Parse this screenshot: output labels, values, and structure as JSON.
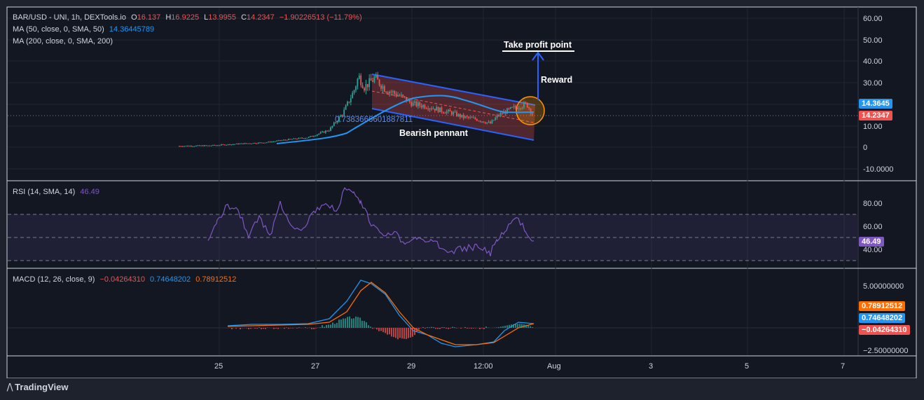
{
  "header": {
    "symbol": "BAR/USD - UNI, 1h, DEXTools.io",
    "ohlc": {
      "o_label": "O",
      "o": "16.137",
      "h_label": "H",
      "h": "16.9225",
      "l_label": "L",
      "l": "13.9955",
      "c_label": "C",
      "c": "14.2347",
      "change": "−1.90226513 (−11.79%)"
    },
    "ma50_label": "MA (50, close, 0, SMA, 50)",
    "ma50_value": "14.36445789",
    "ma200_label": "MA (200, close, 0, SMA, 200)"
  },
  "rsi_panel": {
    "label": "RSI (14, SMA, 14)",
    "value": "46.49",
    "ticks": [
      "80.00",
      "60.00",
      "40.00"
    ],
    "badge": "46.49"
  },
  "macd_panel": {
    "label": "MACD (12, 26, close, 9)",
    "hist": "−0.04264310",
    "macd": "0.74648202",
    "signal": "0.78912512",
    "ticks": [
      "5.00000000",
      "−2.50000000"
    ],
    "badges": {
      "signal": "0.78912512",
      "macd": "0.74648202",
      "hist": "−0.04264310"
    }
  },
  "price_axis": {
    "ticks": [
      "60.00",
      "50.00",
      "40.00",
      "30.00",
      "10.00",
      "0",
      "-10.0000"
    ],
    "badge_ma": "14.3645",
    "badge_price": "14.2347"
  },
  "time_axis": {
    "ticks": [
      "25",
      "27",
      "29",
      "12:00",
      "Aug",
      "3",
      "5",
      "7"
    ]
  },
  "annotations": {
    "take_profit": "Take profit point",
    "reward": "Reward",
    "bearish_pennant": "Bearish pennant",
    "fib_value": "0.7383666601887811"
  },
  "branding": {
    "name": "TradingView"
  },
  "colors": {
    "up": "#26a69a",
    "down": "#ef5350",
    "ma50": "#2196f3",
    "rsi": "#7e57c2",
    "macd": "#2196f3",
    "signal": "#ff6d00",
    "channel": "#2962ff",
    "circle": "#ff9800"
  },
  "chart_data": [
    {
      "type": "candlestick",
      "title": "BAR/USD - UNI, 1h",
      "y_ticks": [
        60,
        50,
        40,
        30,
        10,
        0,
        -10
      ],
      "ylim": [
        -13,
        62
      ],
      "close_path": {
        "x": [
          "24 Jul 12:00",
          "25 Jul 00:00",
          "25 Jul 12:00",
          "26 Jul 00:00",
          "26 Jul 12:00",
          "27 Jul 00:00",
          "27 Jul 12:00",
          "28 Jul 00:00",
          "28 Jul 04:00",
          "28 Jul 08:00",
          "28 Jul 12:00",
          "28 Jul 18:00",
          "29 Jul 00:00",
          "29 Jul 08:00",
          "29 Jul 16:00",
          "30 Jul 00:00",
          "30 Jul 08:00",
          "30 Jul 12:00",
          "30 Jul 18:00",
          "31 Jul 00:00",
          "31 Jul 04:00",
          "31 Jul 08:00"
        ],
        "y": [
          0.5,
          0.8,
          1.8,
          2.5,
          3.5,
          4.5,
          8,
          17,
          32,
          30,
          28,
          26,
          22,
          20,
          18,
          16,
          14,
          12,
          16,
          18,
          20,
          14.2
        ]
      },
      "ma50": {
        "last": 14.36445789
      },
      "last_price": 14.2347,
      "annotations": [
        "Take profit point",
        "Reward",
        "Bearish pennant"
      ]
    },
    {
      "type": "line",
      "title": "RSI (14, SMA, 14)",
      "y_ticks": [
        80,
        60,
        40
      ],
      "bands": [
        70,
        50,
        30
      ],
      "series": [
        {
          "name": "RSI",
          "last": 46.49
        }
      ]
    },
    {
      "type": "line",
      "title": "MACD (12, 26, close, 9)",
      "y_ticks": [
        5,
        -2.5
      ],
      "series": [
        {
          "name": "MACD",
          "last": 0.74648202
        },
        {
          "name": "Signal",
          "last": 0.78912512
        },
        {
          "name": "Histogram",
          "last": -0.0426431
        }
      ]
    }
  ]
}
